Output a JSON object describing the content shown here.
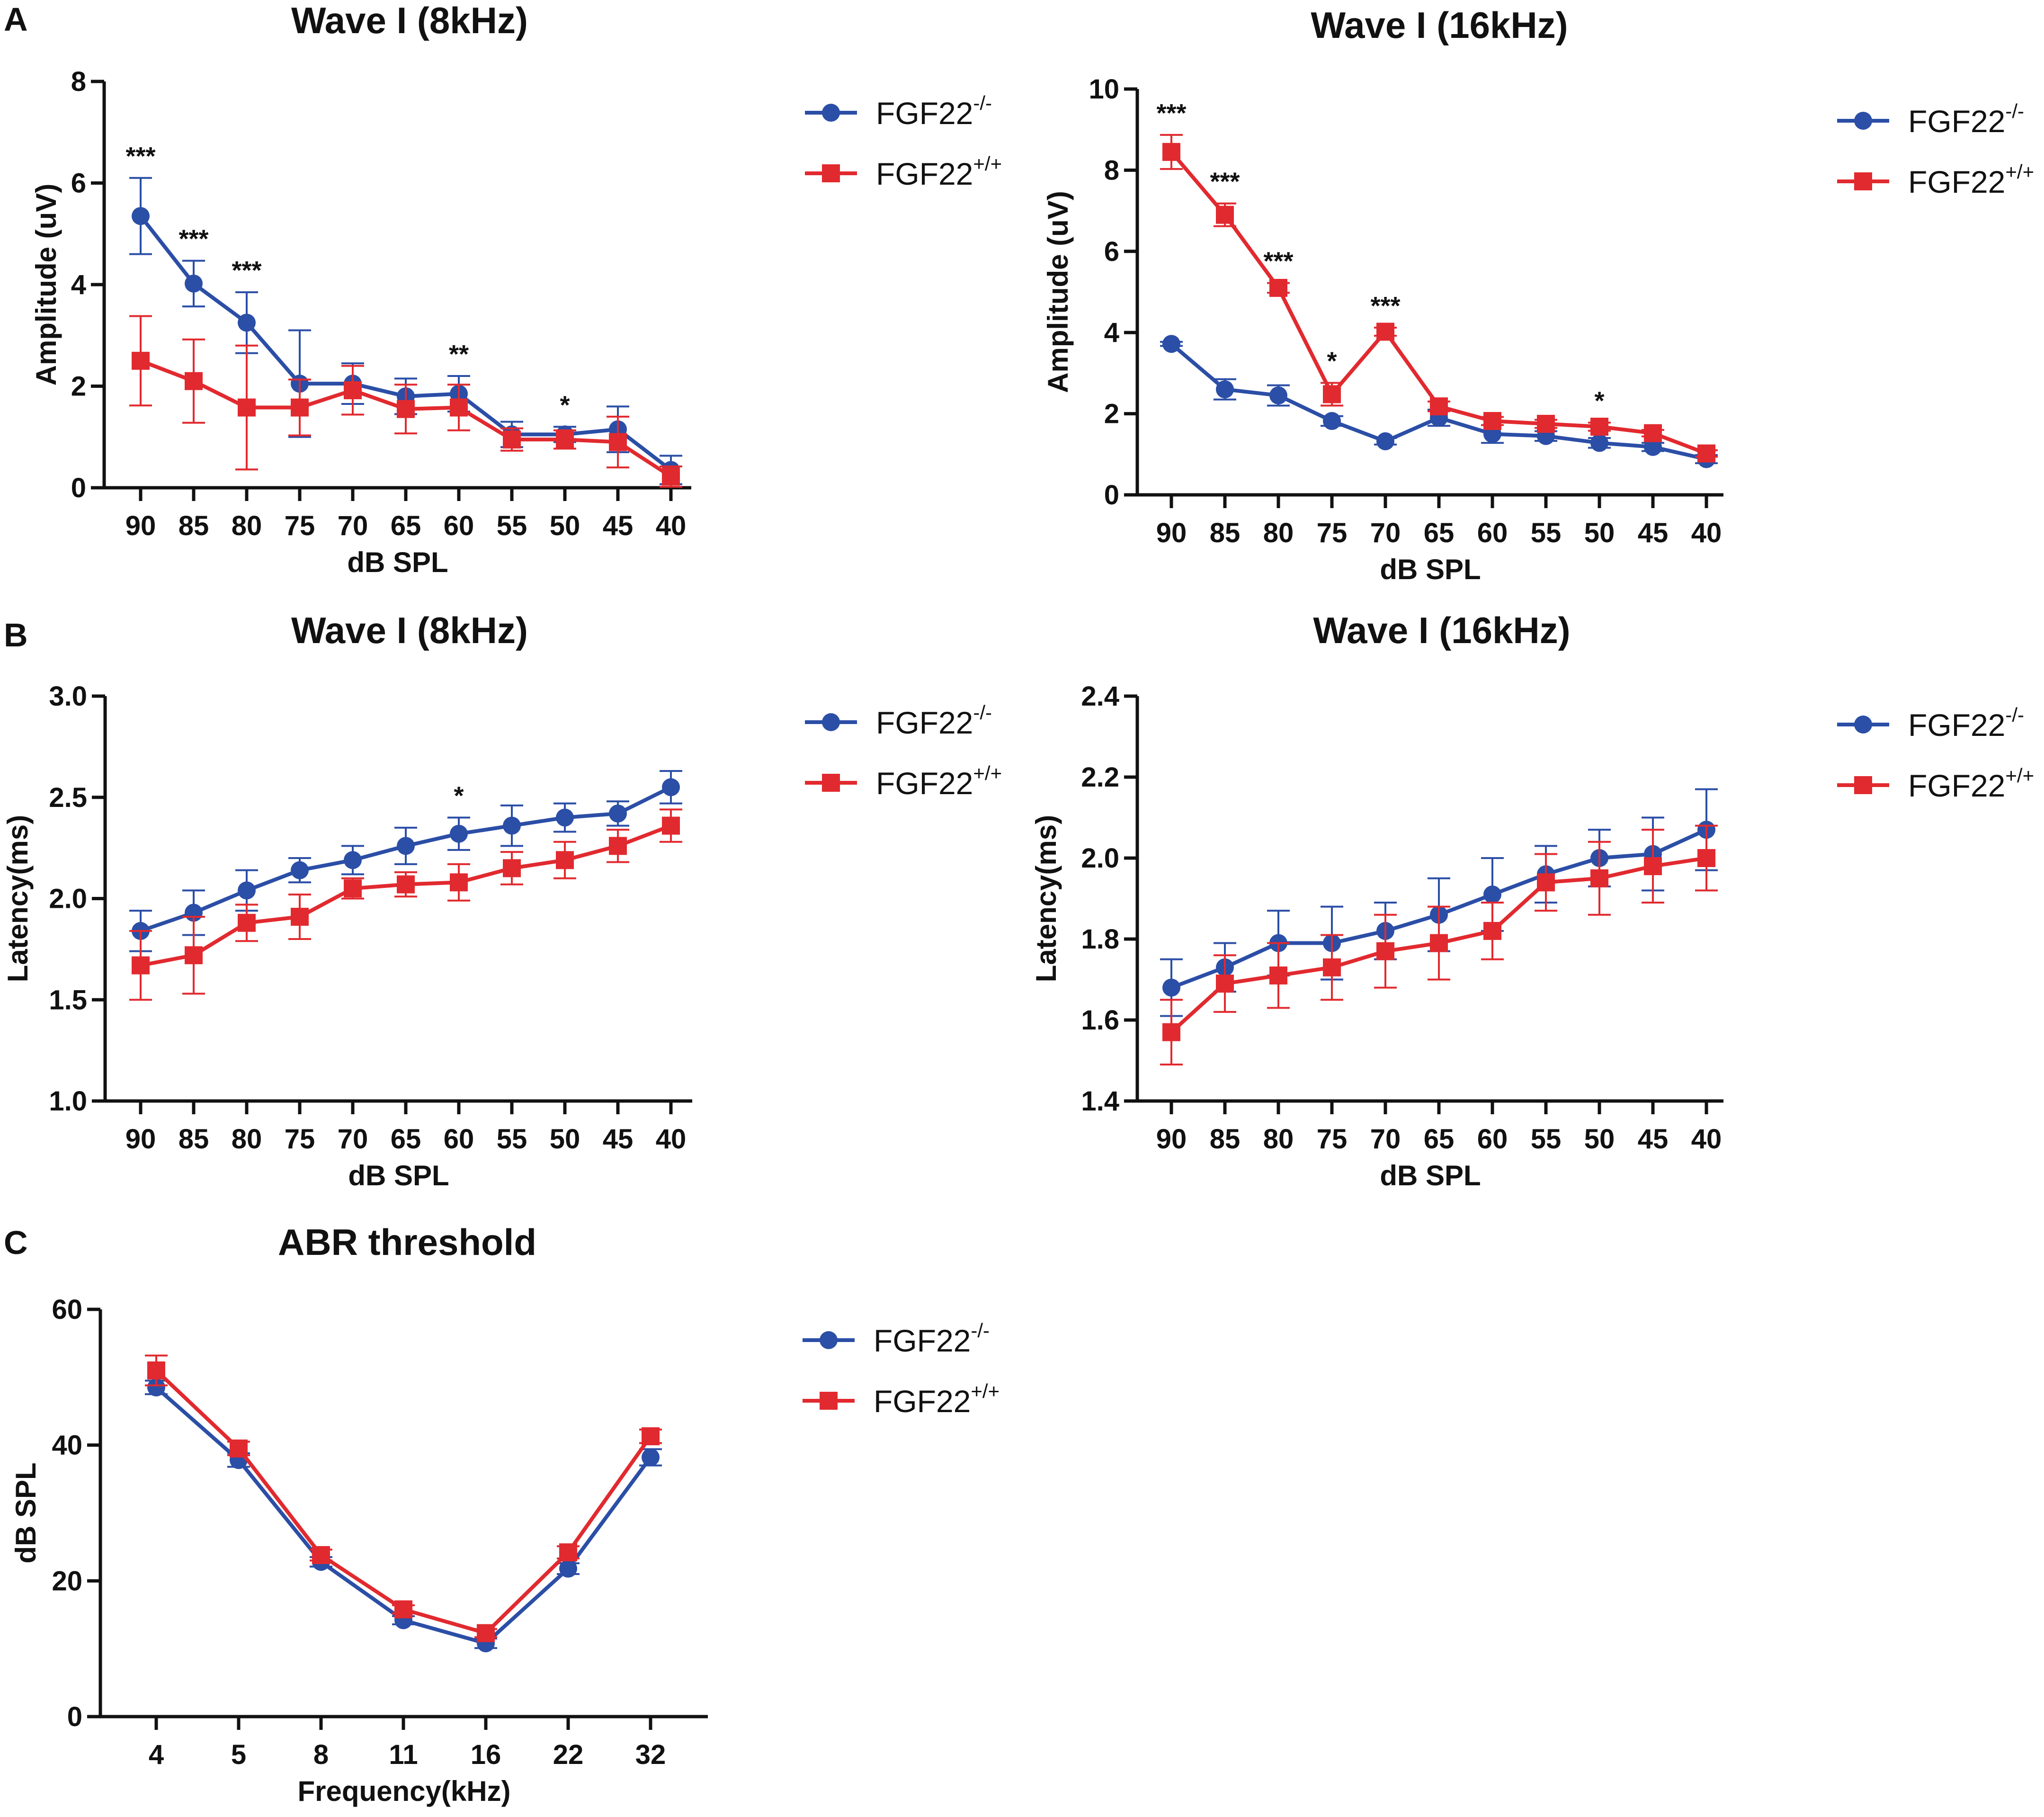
{
  "panels": {
    "A": "A",
    "B": "B",
    "C": "C"
  },
  "colors": {
    "ko": "#2b4ea6",
    "wt": "#e12a2f",
    "axis": "#111111"
  },
  "chart_data": [
    {
      "id": "amp8",
      "panel": "A",
      "type": "line",
      "title": "Wave I (8kHz)",
      "xlabel": "dB SPL",
      "ylabel": "Amplitude (uV)",
      "ylim": [
        0,
        8
      ],
      "yticks": [
        "0",
        "2",
        "4",
        "6",
        "8"
      ],
      "categories": [
        "90",
        "85",
        "80",
        "75",
        "70",
        "65",
        "60",
        "55",
        "50",
        "45",
        "40"
      ],
      "series": [
        {
          "name": "FGF22",
          "sup": "-/-",
          "color": "#2b4ea6",
          "marker": "circle",
          "values": [
            5.35,
            4.02,
            3.25,
            2.05,
            2.05,
            1.8,
            1.85,
            1.05,
            1.05,
            1.15,
            0.35
          ],
          "errors": [
            0.75,
            0.45,
            0.6,
            1.05,
            0.4,
            0.35,
            0.35,
            0.25,
            0.15,
            0.45,
            0.28
          ]
        },
        {
          "name": "FGF22",
          "sup": "+/+",
          "color": "#e12a2f",
          "marker": "square",
          "values": [
            2.5,
            2.1,
            1.58,
            1.58,
            1.92,
            1.55,
            1.58,
            0.95,
            0.95,
            0.9,
            0.22
          ],
          "errors": [
            0.88,
            0.82,
            1.22,
            0.55,
            0.48,
            0.48,
            0.45,
            0.22,
            0.18,
            0.5,
            0.2
          ]
        }
      ],
      "significance": [
        "***",
        "***",
        "***",
        "",
        "",
        "",
        "**",
        "",
        "*",
        "",
        ""
      ]
    },
    {
      "id": "amp16",
      "panel": "A",
      "type": "line",
      "title": "Wave I (16kHz)",
      "xlabel": "dB SPL",
      "ylabel": "Amplitude (uV)",
      "ylim": [
        0,
        10
      ],
      "yticks": [
        "0",
        "2",
        "4",
        "6",
        "8",
        "10"
      ],
      "categories": [
        "90",
        "85",
        "80",
        "75",
        "70",
        "65",
        "60",
        "55",
        "50",
        "45",
        "40"
      ],
      "series": [
        {
          "name": "FGF22",
          "sup": "-/-",
          "color": "#2b4ea6",
          "marker": "circle",
          "values": [
            3.72,
            2.6,
            2.45,
            1.82,
            1.32,
            1.9,
            1.5,
            1.45,
            1.28,
            1.18,
            0.88
          ],
          "errors": [
            0.05,
            0.25,
            0.25,
            0.12,
            0.08,
            0.2,
            0.22,
            0.12,
            0.12,
            0.1,
            0.1
          ]
        },
        {
          "name": "FGF22",
          "sup": "+/+",
          "color": "#e12a2f",
          "marker": "square",
          "values": [
            8.45,
            6.9,
            5.1,
            2.48,
            4.02,
            2.18,
            1.82,
            1.75,
            1.68,
            1.52,
            1.02
          ],
          "errors": [
            0.42,
            0.28,
            0.12,
            0.28,
            0.1,
            0.12,
            0.1,
            0.1,
            0.1,
            0.08,
            0.08
          ]
        }
      ],
      "significance": [
        "***",
        "***",
        "***",
        "*",
        "***",
        "",
        "",
        "",
        "*",
        "",
        ""
      ]
    },
    {
      "id": "lat8",
      "panel": "B",
      "type": "line",
      "title": "Wave I (8kHz)",
      "xlabel": "dB SPL",
      "ylabel": "Latency(ms)",
      "ylim": [
        1.0,
        3.0
      ],
      "yticks": [
        "1.0",
        "1.5",
        "2.0",
        "2.5",
        "3.0"
      ],
      "categories": [
        "90",
        "85",
        "80",
        "75",
        "70",
        "65",
        "60",
        "55",
        "50",
        "45",
        "40"
      ],
      "series": [
        {
          "name": "FGF22",
          "sup": "-/-",
          "color": "#2b4ea6",
          "marker": "circle",
          "values": [
            1.84,
            1.93,
            2.04,
            2.14,
            2.19,
            2.26,
            2.32,
            2.36,
            2.4,
            2.42,
            2.55
          ],
          "errors": [
            0.1,
            0.11,
            0.1,
            0.06,
            0.07,
            0.09,
            0.08,
            0.1,
            0.07,
            0.06,
            0.08
          ]
        },
        {
          "name": "FGF22",
          "sup": "+/+",
          "color": "#e12a2f",
          "marker": "square",
          "values": [
            1.67,
            1.72,
            1.88,
            1.91,
            2.05,
            2.07,
            2.08,
            2.15,
            2.19,
            2.26,
            2.36
          ],
          "errors": [
            0.17,
            0.19,
            0.09,
            0.11,
            0.05,
            0.06,
            0.09,
            0.08,
            0.09,
            0.08,
            0.08
          ]
        }
      ],
      "significance": [
        "",
        "",
        "",
        "",
        "",
        "",
        "*",
        "",
        "",
        "",
        ""
      ]
    },
    {
      "id": "lat16",
      "panel": "B",
      "type": "line",
      "title": "Wave I (16kHz)",
      "xlabel": "dB SPL",
      "ylabel": "Latency(ms)",
      "ylim": [
        1.4,
        2.4
      ],
      "yticks": [
        "1.4",
        "1.6",
        "1.8",
        "2.0",
        "2.2",
        "2.4"
      ],
      "categories": [
        "90",
        "85",
        "80",
        "75",
        "70",
        "65",
        "60",
        "55",
        "50",
        "45",
        "40"
      ],
      "series": [
        {
          "name": "FGF22",
          "sup": "-/-",
          "color": "#2b4ea6",
          "marker": "circle",
          "values": [
            1.68,
            1.73,
            1.79,
            1.79,
            1.82,
            1.86,
            1.91,
            1.96,
            2.0,
            2.01,
            2.07
          ],
          "errors": [
            0.07,
            0.06,
            0.08,
            0.09,
            0.07,
            0.09,
            0.09,
            0.07,
            0.07,
            0.09,
            0.1
          ]
        },
        {
          "name": "FGF22",
          "sup": "+/+",
          "color": "#e12a2f",
          "marker": "square",
          "values": [
            1.57,
            1.69,
            1.71,
            1.73,
            1.77,
            1.79,
            1.82,
            1.94,
            1.95,
            1.98,
            2.0
          ],
          "errors": [
            0.08,
            0.07,
            0.08,
            0.08,
            0.09,
            0.09,
            0.07,
            0.07,
            0.09,
            0.09,
            0.08
          ]
        }
      ],
      "significance": [
        "",
        "",
        "",
        "",
        "",
        "",
        "",
        "",
        "",
        "",
        ""
      ]
    },
    {
      "id": "abr",
      "panel": "C",
      "type": "line",
      "title": "ABR threshold",
      "xlabel": "Frequency(kHz)",
      "ylabel": "dB SPL",
      "ylim": [
        0,
        60
      ],
      "yticks": [
        "0",
        "20",
        "40",
        "60"
      ],
      "categories": [
        "4",
        "5",
        "8",
        "11",
        "16",
        "22",
        "32"
      ],
      "series": [
        {
          "name": "FGF22",
          "sup": "-/-",
          "color": "#2b4ea6",
          "marker": "circle",
          "values": [
            48.5,
            37.8,
            22.8,
            14.2,
            10.8,
            21.8,
            38.2
          ],
          "errors": [
            1.0,
            1.0,
            0.7,
            0.6,
            0.7,
            0.8,
            1.2
          ]
        },
        {
          "name": "FGF22",
          "sup": "+/+",
          "color": "#e12a2f",
          "marker": "square",
          "values": [
            51.0,
            39.5,
            23.8,
            15.8,
            12.3,
            24.2,
            41.3
          ],
          "errors": [
            2.2,
            1.0,
            0.8,
            0.6,
            0.6,
            0.9,
            1.0
          ]
        }
      ],
      "significance": [
        "",
        "",
        "",
        "",
        "",
        "",
        ""
      ]
    }
  ]
}
